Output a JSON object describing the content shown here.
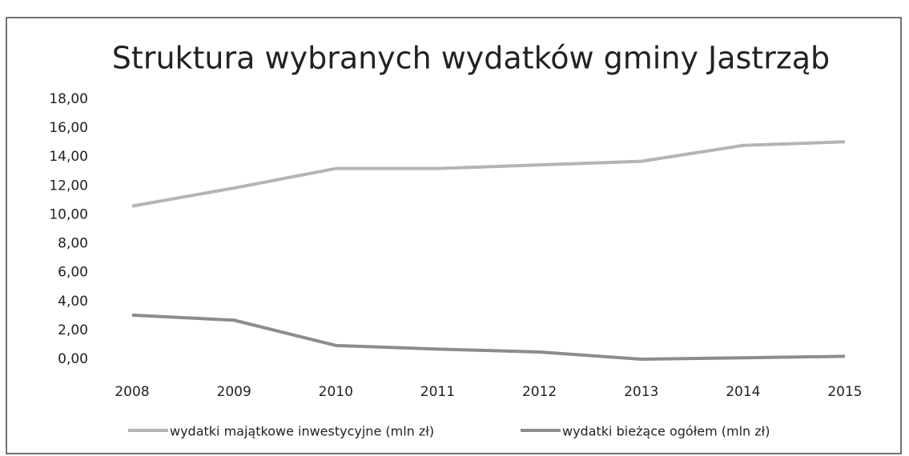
{
  "chart_data": {
    "type": "line",
    "title": "Struktura wybranych wydatków gminy Jastrząb",
    "categories": [
      "2008",
      "2009",
      "2010",
      "2011",
      "2012",
      "2013",
      "2014",
      "2015"
    ],
    "series": [
      {
        "name": "wydatki majątkowe inwestycyjne (mln zł)",
        "color": "#b4b4b4",
        "values": [
          10.6,
          11.85,
          13.2,
          13.2,
          13.45,
          13.7,
          14.8,
          15.05
        ]
      },
      {
        "name": "wydatki bieżące ogółem (mln zł)",
        "color": "#8c8c8c",
        "values": [
          3.05,
          2.7,
          0.95,
          0.7,
          0.5,
          0.0,
          0.1,
          0.2
        ]
      }
    ],
    "ylim": [
      0,
      18
    ],
    "yticks": [
      {
        "value": 0,
        "label": "0,00"
      },
      {
        "value": 2,
        "label": "2,00"
      },
      {
        "value": 4,
        "label": "4,00"
      },
      {
        "value": 6,
        "label": "6,00"
      },
      {
        "value": 8,
        "label": "8,00"
      },
      {
        "value": 10,
        "label": "10,00"
      },
      {
        "value": 12,
        "label": "12,00"
      },
      {
        "value": 14,
        "label": "14,00"
      },
      {
        "value": 16,
        "label": "16,00"
      },
      {
        "value": 18,
        "label": "18,00"
      }
    ],
    "grid": false,
    "legend": "bottom"
  }
}
